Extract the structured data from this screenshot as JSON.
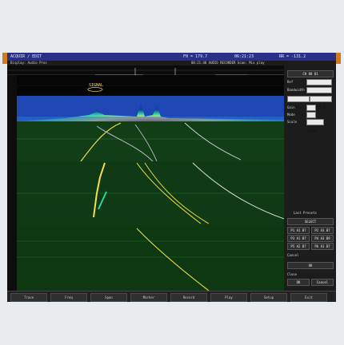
{
  "topbar": {
    "acquisition": "ACQUIR / EDIT",
    "frequency": "F0 = 179.7",
    "clock": "06:21:23",
    "level": "RR = -131.2"
  },
  "subbar": {
    "mode": "Display: Audio Proc",
    "recorder": "00:21:48  AUDIO RECORDER  Scan: Mix play"
  },
  "marker_label": "SIGNAL",
  "right_panel": {
    "header": "CH 00 01",
    "field_a_label": "Ref",
    "field_a_value": "VALUE1",
    "field_b_label": "Bandwidth",
    "field_b_value": "VAL",
    "range_start": "-1987.3",
    "range_end": "+1975.0",
    "gain_label": "Gain",
    "gain_value": "0",
    "mode_label": "Mode",
    "mode_value": "1",
    "scale_label": "Scale",
    "scale_value": "Auto",
    "list_title": "Last Presets",
    "list_button": "SELECT",
    "presets": [
      "P1 A1 B7",
      "P2 A3 B7",
      "P3 A1 B7",
      "P4 A3 B9",
      "P5 A2 B7",
      "P6 A1 B7"
    ],
    "cancel_label": "Cancel",
    "ok_label": "OK",
    "close_label": "Close"
  },
  "bottombar": {
    "buttons": [
      "Trace",
      "Freq",
      "Span",
      "Marker",
      "Record",
      "Play",
      "Setup",
      "Exit"
    ]
  },
  "colors": {
    "accent": "#d27a1e",
    "topbar": "#2a2f8a",
    "waterfall_bg": "#0f3a14",
    "spectrum_bg": "#1a3fa8",
    "trace_yellow": "#f4e04a",
    "trace_gray": "#b8b8c8"
  }
}
